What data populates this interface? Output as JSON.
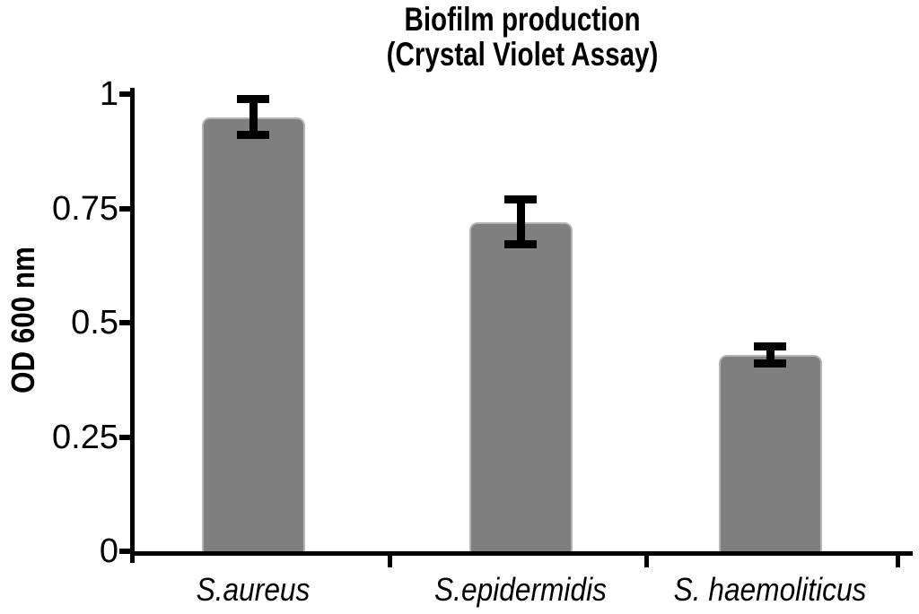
{
  "chart_data": {
    "type": "bar",
    "title": "Biofilm production",
    "subtitle": "(Crystal Violet Assay)",
    "ylabel": "OD 600 nm",
    "xlabel": "",
    "categories": [
      "S.aureus",
      "S.epidermidis",
      "S. haemoliticus"
    ],
    "series": [
      {
        "name": "OD 600 nm",
        "values": [
          0.95,
          0.72,
          0.43
        ],
        "errors": [
          0.04,
          0.05,
          0.02
        ]
      }
    ],
    "ylim": [
      0,
      1
    ],
    "yticks": [
      0,
      0.25,
      0.5,
      0.75,
      1
    ],
    "ytick_labels": [
      "0",
      "0.25",
      "0.5",
      "0.75",
      "1"
    ],
    "grid": false,
    "legend": "none",
    "bar_color": "#7f7f7f",
    "bar_border_color": "#b3b3b3",
    "error_bar_color": "#000000",
    "axis_color": "#000000",
    "background_color": "#ffffff"
  }
}
